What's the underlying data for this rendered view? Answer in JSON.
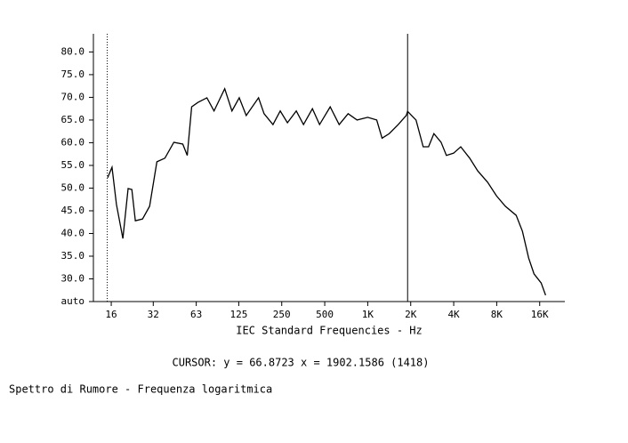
{
  "chart_data": {
    "type": "line",
    "xlabel": "IEC Standard Frequencies - Hz",
    "cursor": {
      "label": "CURSOR: y = 66.8723 x = 1902.1586 (1418)",
      "x": 1902.1586
    },
    "footer": "Spettro di Rumore - Frequenza logaritmica",
    "x_scale": "log",
    "reference_x": 15,
    "xlim": [
      12,
      24000
    ],
    "ylim": [
      25,
      84
    ],
    "xticks": [
      16,
      {
        "value": 31.5,
        "label": "32"
      },
      63,
      125,
      250,
      500,
      {
        "value": 1000,
        "label": "1K"
      },
      {
        "value": 2000,
        "label": "2K"
      },
      {
        "value": 4000,
        "label": "4K"
      },
      {
        "value": 8000,
        "label": "8K"
      },
      {
        "value": 16000,
        "label": "16K"
      }
    ],
    "yticks": [
      {
        "value": 25,
        "label": "auto"
      },
      {
        "value": 30,
        "label": "30.0"
      },
      {
        "value": 35,
        "label": "35.0"
      },
      {
        "value": 40,
        "label": "40.0"
      },
      {
        "value": 45,
        "label": "45.0"
      },
      {
        "value": 50,
        "label": "50.0"
      },
      {
        "value": 55,
        "label": "55.0"
      },
      {
        "value": 60,
        "label": "60.0"
      },
      {
        "value": 65,
        "label": "65.0"
      },
      {
        "value": 70,
        "label": "70.0"
      },
      {
        "value": 75,
        "label": "75.0"
      },
      {
        "value": 80,
        "label": "80.0"
      }
    ],
    "x": [
      15.1,
      16.2,
      17.4,
      19.3,
      21.0,
      22.3,
      23.6,
      26.5,
      29.7,
      33.4,
      38.0,
      43.9,
      50.7,
      54.5,
      58.5,
      64.8,
      74.8,
      83.9,
      99.7,
      112,
      126,
      141,
      172,
      188,
      217,
      244,
      274,
      316,
      355,
      410,
      460,
      546,
      631,
      729,
      842,
      1000,
      1156,
      1260,
      1414,
      1634,
      1861,
      1902,
      2179,
      2445,
      2666,
      2906,
      3263,
      3556,
      3992,
      4480,
      5175,
      5890,
      6904,
      7970,
      9200,
      10950,
      12110,
      13390,
      14600,
      16380,
      17600
    ],
    "series": [
      {
        "name": "Spettro",
        "color": "#000000",
        "values": [
          52.3,
          54.6,
          46.4,
          38.9,
          49.9,
          49.7,
          42.8,
          43.2,
          46.0,
          55.8,
          56.6,
          60.1,
          59.7,
          57.2,
          67.9,
          68.9,
          69.9,
          67.0,
          71.9,
          67.0,
          69.9,
          66.0,
          69.9,
          66.4,
          64.0,
          67.0,
          64.4,
          67.0,
          64.0,
          67.5,
          64.0,
          67.9,
          64.0,
          66.4,
          65.0,
          65.6,
          65.0,
          61.0,
          62.0,
          64.0,
          66.0,
          66.9,
          65.0,
          59.1,
          59.1,
          62.0,
          60.1,
          57.2,
          57.7,
          59.1,
          56.6,
          53.8,
          51.3,
          48.3,
          46.0,
          44.0,
          40.5,
          34.6,
          31.1,
          29.1,
          26.4
        ]
      }
    ]
  }
}
